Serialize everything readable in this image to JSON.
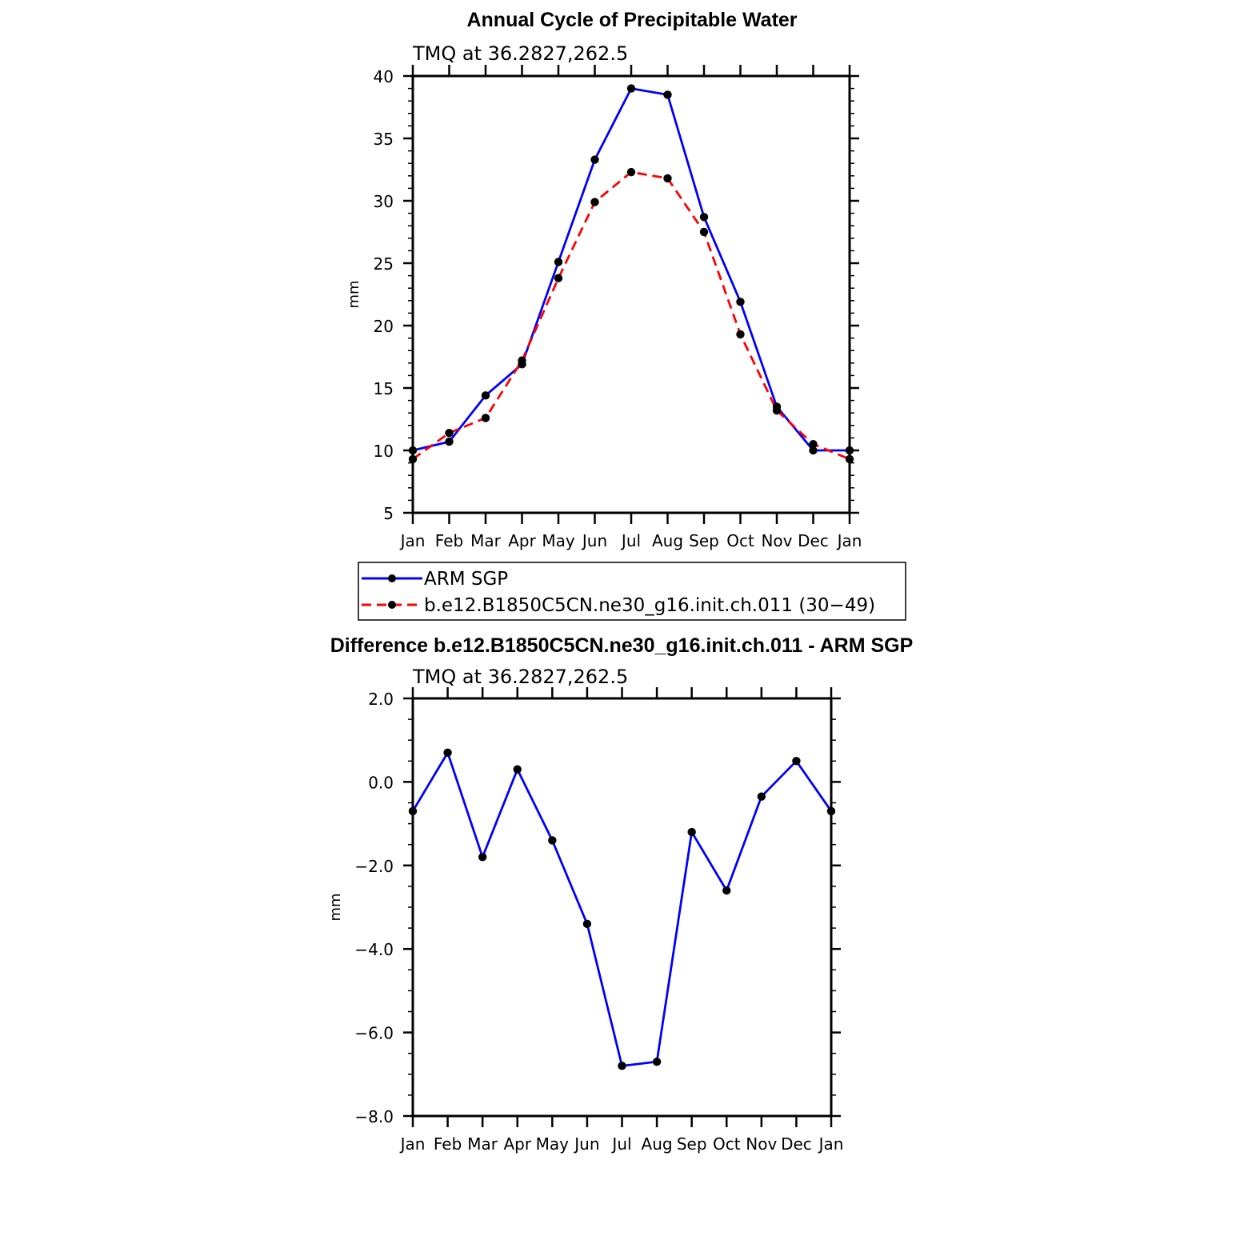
{
  "chart_data": [
    {
      "type": "line",
      "title": "Annual Cycle of Precipitable Water",
      "subtitle": "TMQ at 36.2827,262.5",
      "ylabel": "mm",
      "xlabel": "",
      "categories": [
        "Jan",
        "Feb",
        "Mar",
        "Apr",
        "May",
        "Jun",
        "Jul",
        "Aug",
        "Sep",
        "Oct",
        "Nov",
        "Dec",
        "Jan"
      ],
      "ylim": [
        5,
        40
      ],
      "yticks": [
        "5",
        "10",
        "15",
        "20",
        "25",
        "30",
        "35",
        "40"
      ],
      "series": [
        {
          "name": "ARM SGP",
          "color": "#0000ff",
          "style": "solid",
          "values": [
            10.0,
            10.7,
            14.4,
            16.9,
            25.1,
            33.3,
            39.0,
            38.5,
            28.7,
            21.9,
            13.5,
            10.0,
            10.0
          ]
        },
        {
          "name": "b.e12.B1850C5CN.ne30_g16.init.ch.011 (30−49)",
          "color": "#ff0000",
          "style": "dashed",
          "values": [
            9.3,
            11.4,
            12.6,
            17.2,
            23.8,
            29.9,
            32.3,
            31.8,
            27.5,
            19.3,
            13.2,
            10.5,
            9.3
          ]
        }
      ]
    },
    {
      "type": "line",
      "title": "Difference b.e12.B1850C5CN.ne30_g16.init.ch.011 - ARM SGP",
      "subtitle": "TMQ at 36.2827,262.5",
      "ylabel": "mm",
      "xlabel": "",
      "categories": [
        "Jan",
        "Feb",
        "Mar",
        "Apr",
        "May",
        "Jun",
        "Jul",
        "Aug",
        "Sep",
        "Oct",
        "Nov",
        "Dec",
        "Jan"
      ],
      "ylim": [
        -8.0,
        2.0
      ],
      "yticks": [
        "−8.0",
        "−6.0",
        "−4.0",
        "−2.0",
        "0.0",
        "2.0"
      ],
      "series": [
        {
          "name": "",
          "color": "#0000ff",
          "style": "solid",
          "values": [
            -0.7,
            0.7,
            -1.8,
            0.3,
            -1.4,
            -3.4,
            -6.8,
            -6.7,
            -1.2,
            -2.6,
            -0.35,
            0.5,
            -0.7
          ]
        }
      ]
    }
  ]
}
